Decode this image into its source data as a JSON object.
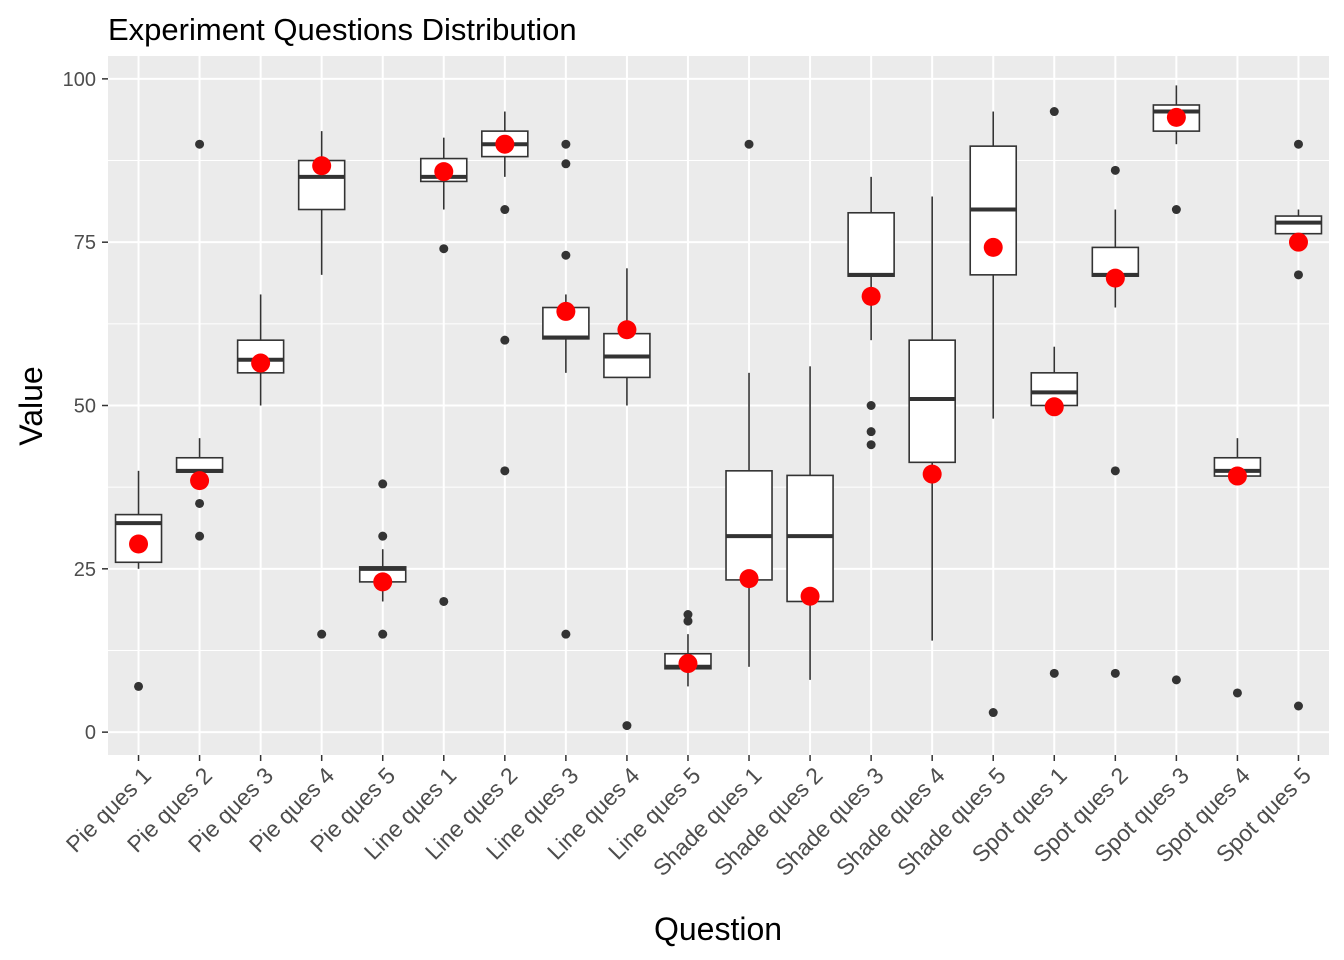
{
  "chart_data": {
    "type": "box",
    "title": "Experiment Questions Distribution",
    "xlabel": "Question",
    "ylabel": "Value",
    "ylim": [
      -3.5,
      103.5
    ],
    "yticks": [
      0,
      25,
      50,
      75,
      100
    ],
    "grid": true,
    "legend": "none",
    "colors": {
      "panel_background": "#ebebeb",
      "grid": "#ffffff",
      "box_fill": "#ffffff",
      "box_line": "#333333",
      "outlier": "#333333",
      "mean_marker": "#ff0000",
      "tick_text": "#4d4d4d"
    },
    "categories": [
      "Pie ques 1",
      "Pie ques 2",
      "Pie ques 3",
      "Pie ques 4",
      "Pie ques 5",
      "Line ques 1",
      "Line ques 2",
      "Line ques 3",
      "Line ques 4",
      "Line ques 5",
      "Shade ques 1",
      "Shade ques 2",
      "Shade ques 3",
      "Shade ques 4",
      "Shade ques 5",
      "Spot ques 1",
      "Spot ques 2",
      "Spot ques 3",
      "Spot ques 4",
      "Spot ques 5"
    ],
    "boxes": [
      {
        "category": "Pie ques 1",
        "low": 25,
        "q1": 26,
        "median": 32,
        "q3": 33.3,
        "high": 40,
        "mean": 28.8,
        "outliers": [
          7
        ]
      },
      {
        "category": "Pie ques 2",
        "low": 38,
        "q1": 39.8,
        "median": 40,
        "q3": 42,
        "high": 45,
        "mean": 38.5,
        "outliers": [
          35,
          30,
          90
        ]
      },
      {
        "category": "Pie ques 3",
        "low": 50,
        "q1": 55,
        "median": 57,
        "q3": 60,
        "high": 67,
        "mean": 56.5,
        "outliers": []
      },
      {
        "category": "Pie ques 4",
        "low": 70,
        "q1": 80,
        "median": 85,
        "q3": 87.5,
        "high": 92,
        "mean": 86.7,
        "outliers": [
          15
        ]
      },
      {
        "category": "Pie ques 5",
        "low": 20,
        "q1": 23,
        "median": 25,
        "q3": 25.3,
        "high": 28,
        "mean": 23,
        "outliers": [
          15,
          30,
          38
        ]
      },
      {
        "category": "Line ques 1",
        "low": 80,
        "q1": 84.3,
        "median": 85,
        "q3": 87.8,
        "high": 91,
        "mean": 85.8,
        "outliers": [
          20,
          74
        ]
      },
      {
        "category": "Line ques 2",
        "low": 85,
        "q1": 88.1,
        "median": 90,
        "q3": 92,
        "high": 95,
        "mean": 90,
        "outliers": [
          80,
          60,
          40
        ]
      },
      {
        "category": "Line ques 3",
        "low": 55,
        "q1": 60.2,
        "median": 60.4,
        "q3": 65,
        "high": 67,
        "mean": 64.4,
        "outliers": [
          15,
          73,
          87,
          90
        ]
      },
      {
        "category": "Line ques 4",
        "low": 50,
        "q1": 54.3,
        "median": 57.5,
        "q3": 61,
        "high": 71,
        "mean": 61.6,
        "outliers": [
          1
        ]
      },
      {
        "category": "Line ques 5",
        "low": 7,
        "q1": 9.7,
        "median": 10,
        "q3": 12,
        "high": 15,
        "mean": 10.5,
        "outliers": [
          17,
          18
        ]
      },
      {
        "category": "Shade ques 1",
        "low": 10,
        "q1": 23.3,
        "median": 30,
        "q3": 40,
        "high": 55,
        "mean": 23.5,
        "outliers": [
          90
        ]
      },
      {
        "category": "Shade ques 2",
        "low": 8,
        "q1": 20,
        "median": 30,
        "q3": 39.3,
        "high": 56,
        "mean": 20.8,
        "outliers": []
      },
      {
        "category": "Shade ques 3",
        "low": 60,
        "q1": 69.8,
        "median": 70,
        "q3": 79.5,
        "high": 85,
        "mean": 66.7,
        "outliers": [
          50,
          46,
          44
        ]
      },
      {
        "category": "Shade ques 4",
        "low": 14,
        "q1": 41.3,
        "median": 51,
        "q3": 60,
        "high": 82,
        "mean": 39.5,
        "outliers": []
      },
      {
        "category": "Shade ques 5",
        "low": 48,
        "q1": 70,
        "median": 80,
        "q3": 89.7,
        "high": 95,
        "mean": 74.2,
        "outliers": [
          3
        ]
      },
      {
        "category": "Spot ques 1",
        "low": 50,
        "q1": 50,
        "median": 52,
        "q3": 55,
        "high": 59,
        "mean": 49.8,
        "outliers": [
          95,
          9
        ]
      },
      {
        "category": "Spot ques 2",
        "low": 65,
        "q1": 69.8,
        "median": 70,
        "q3": 74.2,
        "high": 80,
        "mean": 69.5,
        "outliers": [
          86,
          40,
          9
        ]
      },
      {
        "category": "Spot ques 3",
        "low": 90,
        "q1": 92,
        "median": 95,
        "q3": 96,
        "high": 99,
        "mean": 94.1,
        "outliers": [
          80,
          8
        ]
      },
      {
        "category": "Spot ques 4",
        "low": 39,
        "q1": 39.2,
        "median": 40,
        "q3": 42,
        "high": 45,
        "mean": 39.2,
        "outliers": [
          6
        ]
      },
      {
        "category": "Spot ques 5",
        "low": 75,
        "q1": 76.3,
        "median": 78,
        "q3": 79,
        "high": 80,
        "mean": 75,
        "outliers": [
          90,
          70,
          4
        ]
      }
    ]
  }
}
